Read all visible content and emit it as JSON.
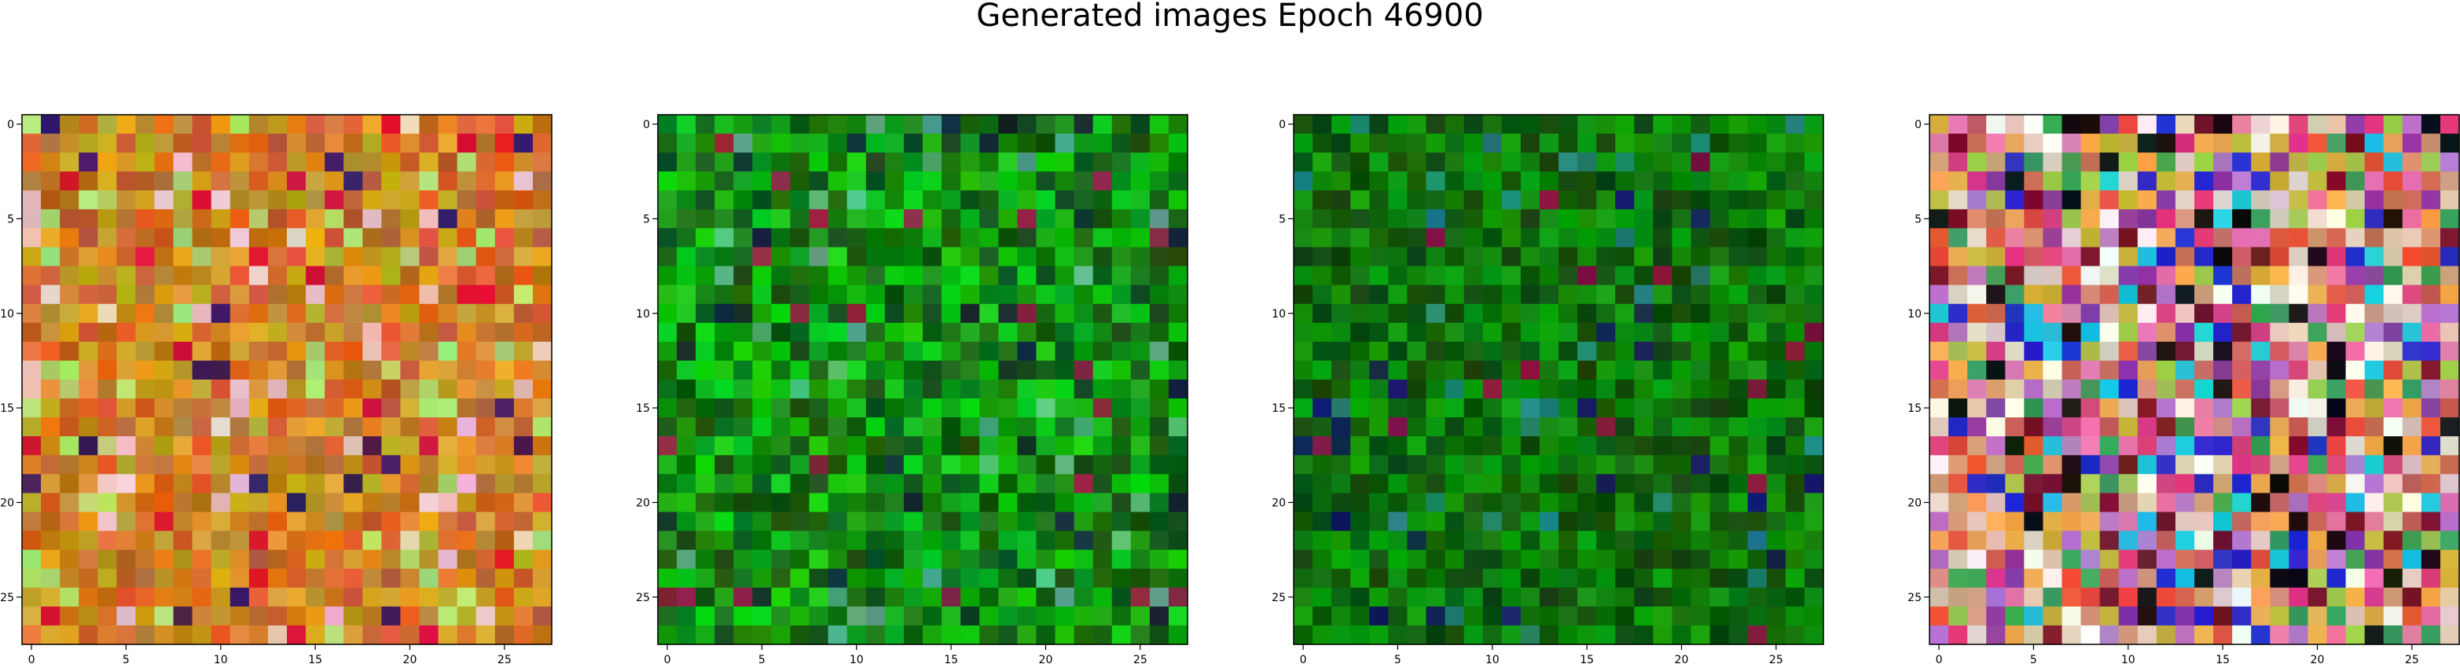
{
  "figure": {
    "title": "Generated images Epoch 46900"
  },
  "chart_data": [
    {
      "type": "heatmap",
      "grid_size": 28,
      "palette": "warm",
      "xticks": [
        0,
        5,
        10,
        15,
        20,
        25
      ],
      "yticks": [
        0,
        5,
        10,
        15,
        20,
        25
      ],
      "xlim": [
        -0.5,
        27.5
      ],
      "ylim": [
        27.5,
        -0.5
      ],
      "grid": false
    },
    {
      "type": "heatmap",
      "grid_size": 28,
      "palette": "green",
      "xticks": [
        0,
        5,
        10,
        15,
        20,
        25
      ],
      "yticks": [
        0,
        5,
        10,
        15,
        20,
        25
      ],
      "xlim": [
        -0.5,
        27.5
      ],
      "ylim": [
        27.5,
        -0.5
      ],
      "grid": false
    },
    {
      "type": "heatmap",
      "grid_size": 28,
      "palette": "dark-green",
      "xticks": [
        0,
        5,
        10,
        15,
        20,
        25
      ],
      "yticks": [
        0,
        5,
        10,
        15,
        20,
        25
      ],
      "xlim": [
        -0.5,
        27.5
      ],
      "ylim": [
        27.5,
        -0.5
      ],
      "grid": false
    },
    {
      "type": "heatmap",
      "grid_size": 28,
      "palette": "multicolor",
      "xticks": [
        0,
        5,
        10,
        15,
        20,
        25
      ],
      "yticks": [
        0,
        5,
        10,
        15,
        20,
        25
      ],
      "xlim": [
        -0.5,
        27.5
      ],
      "ylim": [
        27.5,
        -0.5
      ],
      "grid": false
    }
  ]
}
